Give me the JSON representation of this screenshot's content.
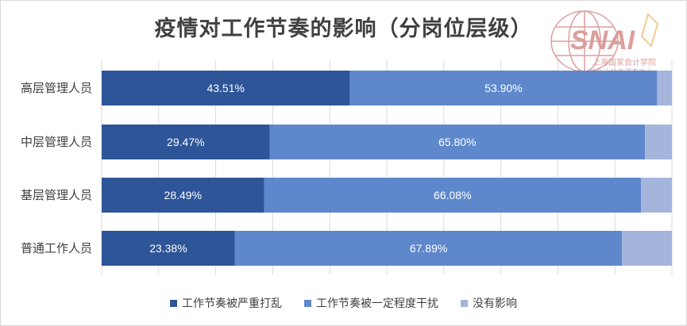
{
  "chart_data": {
    "type": "bar",
    "orientation": "horizontal",
    "stacked": "percent",
    "title": "疫情对工作节奏的影响（分岗位层级）",
    "categories": [
      "高层管理人员",
      "中层管理人员",
      "基层管理人员",
      "普通工作人员"
    ],
    "series": [
      {
        "name": "工作节奏被严重打乱",
        "values": [
          43.51,
          29.47,
          28.49,
          23.38
        ],
        "labels": [
          "43.51%",
          "29.47%",
          "28.49%",
          "23.38%"
        ],
        "color": "#2e5597"
      },
      {
        "name": "工作节奏被一定程度干扰",
        "values": [
          53.9,
          65.8,
          66.08,
          67.89
        ],
        "labels": [
          "53.90%",
          "65.80%",
          "66.08%",
          "67.89%"
        ],
        "color": "#5f88cc"
      },
      {
        "name": "没有影响",
        "values": [
          2.59,
          4.73,
          5.43,
          8.73
        ],
        "labels": [
          "",
          "",
          "",
          ""
        ],
        "color": "#a4b4db"
      }
    ],
    "xlim": [
      0,
      100
    ],
    "legend_position": "bottom",
    "grid": "vertical"
  },
  "watermark": {
    "logo": "SNAI",
    "line1": "上海国家会计学院",
    "line2": "会计信息调查中心",
    "color": "#c0504d"
  }
}
